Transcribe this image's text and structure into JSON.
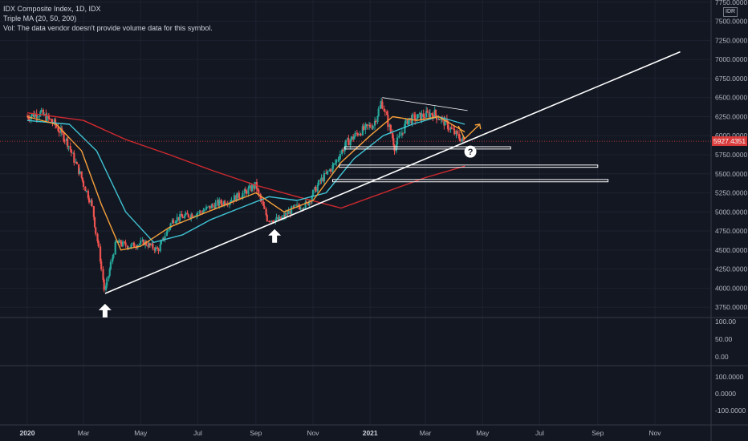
{
  "header": {
    "title": "IDX Composite Index, 1D, IDX",
    "indicator": "Triple MA (20, 50, 200)",
    "volume_note": "Vol: The data vendor doesn't provide volume data for this symbol."
  },
  "currency_badge": "IDR",
  "colors": {
    "background": "#131722",
    "up": "#26a69a",
    "down": "#ef5350",
    "ma20": "#f7a13a",
    "ma50": "#3fc4d4",
    "ma200": "#d12a2f",
    "drawing": "#ffffff",
    "price_box": "#d83a3a"
  },
  "chart_data": {
    "type": "candlestick",
    "symbol": "IDX Composite Index",
    "interval": "1D",
    "last_price": "5927.4351",
    "y_ticks": [
      "7750.0000",
      "7500.0000",
      "7250.0000",
      "7000.0000",
      "6750.0000",
      "6500.0000",
      "6250.0000",
      "6000.0000",
      "5750.0000",
      "5500.0000",
      "5250.0000",
      "5000.0000",
      "4750.0000",
      "4500.0000",
      "4250.0000",
      "4000.0000",
      "3750.0000"
    ],
    "ylim": [
      3625,
      7780
    ],
    "x_ticks": [
      "2020",
      "Mar",
      "May",
      "Jul",
      "Sep",
      "Nov",
      "2021",
      "Mar",
      "May",
      "Jul",
      "Sep",
      "Nov"
    ],
    "price_points": [
      {
        "date": "2020-01-01",
        "value": 6250
      },
      {
        "date": "2020-01-15",
        "value": 6300
      },
      {
        "date": "2020-01-31",
        "value": 6150
      },
      {
        "date": "2020-02-14",
        "value": 5900
      },
      {
        "date": "2020-02-28",
        "value": 5450
      },
      {
        "date": "2020-03-10",
        "value": 5100
      },
      {
        "date": "2020-03-18",
        "value": 4500
      },
      {
        "date": "2020-03-24",
        "value": 3950
      },
      {
        "date": "2020-04-05",
        "value": 4600
      },
      {
        "date": "2020-04-20",
        "value": 4550
      },
      {
        "date": "2020-05-05",
        "value": 4600
      },
      {
        "date": "2020-05-20",
        "value": 4500
      },
      {
        "date": "2020-06-05",
        "value": 4900
      },
      {
        "date": "2020-06-20",
        "value": 4950
      },
      {
        "date": "2020-07-05",
        "value": 5000
      },
      {
        "date": "2020-07-20",
        "value": 5100
      },
      {
        "date": "2020-08-05",
        "value": 5150
      },
      {
        "date": "2020-08-20",
        "value": 5250
      },
      {
        "date": "2020-09-01",
        "value": 5350
      },
      {
        "date": "2020-09-14",
        "value": 4900
      },
      {
        "date": "2020-09-28",
        "value": 4900
      },
      {
        "date": "2020-10-12",
        "value": 5050
      },
      {
        "date": "2020-10-26",
        "value": 5100
      },
      {
        "date": "2020-11-09",
        "value": 5400
      },
      {
        "date": "2020-11-23",
        "value": 5600
      },
      {
        "date": "2020-12-07",
        "value": 5900
      },
      {
        "date": "2020-12-21",
        "value": 6050
      },
      {
        "date": "2021-01-05",
        "value": 6150
      },
      {
        "date": "2021-01-14",
        "value": 6450
      },
      {
        "date": "2021-01-28",
        "value": 5850
      },
      {
        "date": "2021-02-10",
        "value": 6200
      },
      {
        "date": "2021-02-24",
        "value": 6250
      },
      {
        "date": "2021-03-10",
        "value": 6300
      },
      {
        "date": "2021-03-24",
        "value": 6150
      },
      {
        "date": "2021-04-05",
        "value": 5990
      },
      {
        "date": "2021-04-12",
        "value": 5927
      }
    ],
    "ma20": [
      {
        "date": "2020-01-01",
        "value": 6250
      },
      {
        "date": "2020-02-01",
        "value": 6150
      },
      {
        "date": "2020-02-28",
        "value": 5800
      },
      {
        "date": "2020-03-20",
        "value": 5100
      },
      {
        "date": "2020-04-10",
        "value": 4500
      },
      {
        "date": "2020-05-01",
        "value": 4550
      },
      {
        "date": "2020-06-01",
        "value": 4800
      },
      {
        "date": "2020-07-01",
        "value": 4950
      },
      {
        "date": "2020-08-01",
        "value": 5100
      },
      {
        "date": "2020-09-01",
        "value": 5250
      },
      {
        "date": "2020-10-01",
        "value": 5000
      },
      {
        "date": "2020-11-01",
        "value": 5150
      },
      {
        "date": "2020-12-01",
        "value": 5650
      },
      {
        "date": "2021-01-01",
        "value": 6000
      },
      {
        "date": "2021-01-25",
        "value": 6250
      },
      {
        "date": "2021-02-20",
        "value": 6200
      },
      {
        "date": "2021-03-15",
        "value": 6250
      },
      {
        "date": "2021-04-12",
        "value": 6050
      }
    ],
    "ma50": [
      {
        "date": "2020-01-01",
        "value": 6200
      },
      {
        "date": "2020-02-15",
        "value": 6150
      },
      {
        "date": "2020-03-15",
        "value": 5800
      },
      {
        "date": "2020-04-15",
        "value": 5000
      },
      {
        "date": "2020-05-15",
        "value": 4600
      },
      {
        "date": "2020-06-15",
        "value": 4700
      },
      {
        "date": "2020-07-15",
        "value": 4900
      },
      {
        "date": "2020-08-15",
        "value": 5050
      },
      {
        "date": "2020-09-15",
        "value": 5200
      },
      {
        "date": "2020-10-15",
        "value": 5150
      },
      {
        "date": "2020-11-15",
        "value": 5250
      },
      {
        "date": "2020-12-15",
        "value": 5700
      },
      {
        "date": "2021-01-15",
        "value": 6000
      },
      {
        "date": "2021-02-15",
        "value": 6150
      },
      {
        "date": "2021-03-15",
        "value": 6250
      },
      {
        "date": "2021-04-12",
        "value": 6150
      }
    ],
    "ma200": [
      {
        "date": "2020-01-01",
        "value": 6300
      },
      {
        "date": "2020-03-01",
        "value": 6200
      },
      {
        "date": "2020-04-15",
        "value": 5950
      },
      {
        "date": "2020-06-01",
        "value": 5750
      },
      {
        "date": "2020-07-15",
        "value": 5550
      },
      {
        "date": "2020-09-01",
        "value": 5350
      },
      {
        "date": "2020-10-15",
        "value": 5200
      },
      {
        "date": "2020-12-01",
        "value": 5050
      },
      {
        "date": "2021-01-15",
        "value": 5250
      },
      {
        "date": "2021-03-01",
        "value": 5450
      },
      {
        "date": "2021-04-12",
        "value": 5600
      }
    ],
    "annotations": {
      "trendline": {
        "from": {
          "date": "2020-03-24",
          "value": 3930
        },
        "to": {
          "date": "2021-11-28",
          "value": 7100
        }
      },
      "top_line": {
        "from": {
          "date": "2021-01-14",
          "value": 6500
        },
        "to": {
          "date": "2021-04-15",
          "value": 6330
        }
      },
      "support_rects": [
        {
          "from": "2020-12-05",
          "to": "2021-05-31",
          "high": 5855,
          "low": 5825
        },
        {
          "date_note": "",
          "from": "2020-11-29",
          "to": "2021-09-01",
          "high": 5615,
          "low": 5585
        },
        {
          "from": "2020-11-22",
          "to": "2021-09-12",
          "high": 5425,
          "low": 5395
        }
      ],
      "up_arrows": [
        {
          "date": "2020-03-24",
          "value": 3700
        },
        {
          "date": "2020-09-21",
          "value": 4680
        }
      ],
      "question_mark": {
        "date": "2021-04-18",
        "value": 5790
      },
      "projection_arrow": {
        "from": {
          "date": "2021-04-12",
          "value": 5960
        },
        "to": {
          "date": "2021-04-28",
          "value": 6150
        }
      }
    },
    "lower_panes": [
      {
        "ticks": [
          "100.00",
          "50.00",
          "0.00"
        ]
      },
      {
        "ticks": [
          "100.0000",
          "0.0000",
          "-100.0000"
        ]
      }
    ]
  }
}
